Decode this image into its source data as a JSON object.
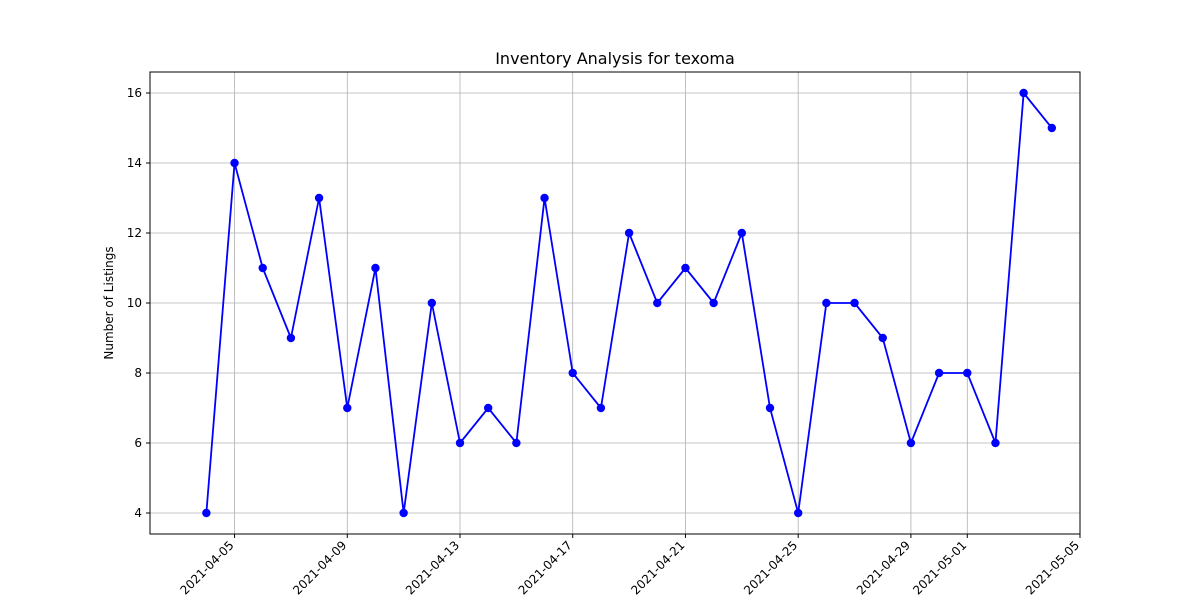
{
  "chart_data": {
    "type": "line",
    "title": "Inventory Analysis for texoma",
    "xlabel": "",
    "ylabel": "Number of Listings",
    "x": [
      "2021-04-04",
      "2021-04-05",
      "2021-04-06",
      "2021-04-07",
      "2021-04-08",
      "2021-04-09",
      "2021-04-10",
      "2021-04-11",
      "2021-04-12",
      "2021-04-13",
      "2021-04-14",
      "2021-04-15",
      "2021-04-16",
      "2021-04-17",
      "2021-04-18",
      "2021-04-19",
      "2021-04-20",
      "2021-04-21",
      "2021-04-22",
      "2021-04-23",
      "2021-04-24",
      "2021-04-25",
      "2021-04-26",
      "2021-04-27",
      "2021-04-28",
      "2021-04-29",
      "2021-04-30",
      "2021-05-01",
      "2021-05-02",
      "2021-05-03",
      "2021-05-04"
    ],
    "series": [
      {
        "values": [
          4,
          14,
          11,
          9,
          13,
          7,
          11,
          4,
          10,
          6,
          7,
          6,
          13,
          8,
          7,
          12,
          10,
          11,
          10,
          12,
          7,
          4,
          10,
          10,
          9,
          6,
          8,
          8,
          6,
          16,
          15
        ],
        "color": "#0000ff",
        "marker": "circle"
      }
    ],
    "xlim": [
      "2021-04-02",
      "2021-05-05"
    ],
    "ylim": [
      3.4,
      16.6
    ],
    "xticks": [
      "2021-04-05",
      "2021-04-09",
      "2021-04-13",
      "2021-04-17",
      "2021-04-21",
      "2021-04-25",
      "2021-04-29",
      "2021-05-01",
      "2021-05-05"
    ],
    "yticks": [
      4,
      6,
      8,
      10,
      12,
      14,
      16
    ],
    "grid": true,
    "xtick_rotation": 45
  }
}
